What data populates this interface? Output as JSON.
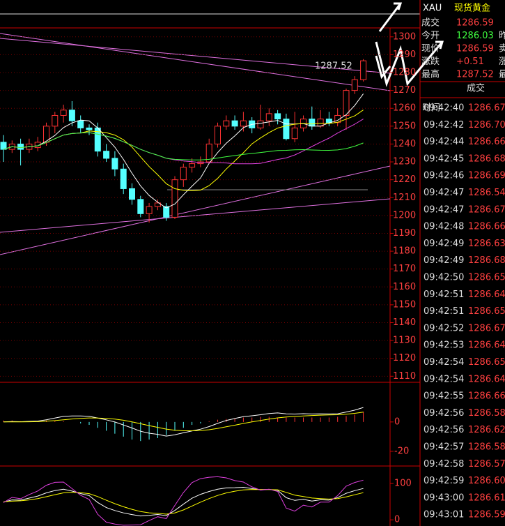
{
  "header": {
    "symbol": "XAU",
    "name": "现货黄金"
  },
  "quote": {
    "rows": [
      {
        "label": "成交",
        "value": "1286.59"
      },
      {
        "label": "今开",
        "value": "1286.03",
        "side": "昨"
      },
      {
        "label": "现价",
        "value": "1286.59",
        "side": "卖"
      },
      {
        "label": "涨跌",
        "value": "+0.51",
        "side": "涨"
      },
      {
        "label": "最高",
        "value": "1287.52",
        "side": "最"
      }
    ]
  },
  "trades": {
    "headers": [
      "时间",
      "成交"
    ],
    "rows": [
      [
        "09:42:40",
        "1286.67"
      ],
      [
        "09:42:42",
        "1286.70"
      ],
      [
        "09:42:44",
        "1286.66"
      ],
      [
        "09:42:45",
        "1286.68"
      ],
      [
        "09:42:46",
        "1286.69"
      ],
      [
        "09:42:47",
        "1286.54"
      ],
      [
        "09:42:47",
        "1286.67"
      ],
      [
        "09:42:48",
        "1286.66"
      ],
      [
        "09:42:49",
        "1286.63"
      ],
      [
        "09:42:49",
        "1286.68"
      ],
      [
        "09:42:50",
        "1286.65"
      ],
      [
        "09:42:51",
        "1286.64"
      ],
      [
        "09:42:51",
        "1286.65"
      ],
      [
        "09:42:52",
        "1286.67"
      ],
      [
        "09:42:53",
        "1286.64"
      ],
      [
        "09:42:54",
        "1286.65"
      ],
      [
        "09:42:54",
        "1286.64"
      ],
      [
        "09:42:55",
        "1286.66"
      ],
      [
        "09:42:56",
        "1286.58"
      ],
      [
        "09:42:56",
        "1286.62"
      ],
      [
        "09:42:57",
        "1286.58"
      ],
      [
        "09:42:58",
        "1286.57"
      ],
      [
        "09:42:59",
        "1286.60"
      ],
      [
        "09:43:00",
        "1286.61"
      ],
      [
        "09:43:01",
        "1286.59"
      ]
    ]
  },
  "chart_data": {
    "type": "candlestick",
    "annotation": "1287.52",
    "ylim": [
      1107,
      1305
    ],
    "yticks": [
      1300,
      1290,
      1280,
      1270,
      1260,
      1250,
      1240,
      1230,
      1220,
      1210,
      1200,
      1190,
      1180,
      1170,
      1160,
      1150,
      1140,
      1130,
      1120,
      1110
    ],
    "candles": [
      [
        1241,
        1237,
        1245,
        1230
      ],
      [
        1237,
        1240,
        1242,
        1235
      ],
      [
        1240,
        1237,
        1243,
        1228
      ],
      [
        1237,
        1240,
        1243,
        1235
      ],
      [
        1238,
        1241,
        1244,
        1236
      ],
      [
        1241,
        1250,
        1252,
        1239
      ],
      [
        1250,
        1256,
        1258,
        1246
      ],
      [
        1256,
        1259,
        1262,
        1252
      ],
      [
        1259,
        1253,
        1264,
        1250
      ],
      [
        1253,
        1249,
        1256,
        1246
      ],
      [
        1249,
        1248,
        1251,
        1245
      ],
      [
        1249,
        1236,
        1252,
        1233
      ],
      [
        1236,
        1232,
        1240,
        1230
      ],
      [
        1232,
        1226,
        1236,
        1222
      ],
      [
        1226,
        1215,
        1229,
        1212
      ],
      [
        1215,
        1209,
        1218,
        1206
      ],
      [
        1209,
        1201,
        1211,
        1199
      ],
      [
        1201,
        1205,
        1207,
        1196
      ],
      [
        1205,
        1207,
        1209,
        1203
      ],
      [
        1205,
        1199,
        1207,
        1197
      ],
      [
        1199,
        1220,
        1222,
        1198
      ],
      [
        1220,
        1227,
        1229,
        1216
      ],
      [
        1227,
        1229,
        1232,
        1224
      ],
      [
        1229,
        1230,
        1233,
        1227
      ],
      [
        1230,
        1240,
        1243,
        1229
      ],
      [
        1240,
        1250,
        1252,
        1238
      ],
      [
        1250,
        1253,
        1256,
        1248
      ],
      [
        1253,
        1250,
        1256,
        1248
      ],
      [
        1250,
        1253,
        1258,
        1247
      ],
      [
        1253,
        1249,
        1255,
        1246
      ],
      [
        1249,
        1253,
        1262,
        1248
      ],
      [
        1253,
        1257,
        1260,
        1250
      ],
      [
        1257,
        1254,
        1259,
        1251
      ],
      [
        1254,
        1243,
        1257,
        1242
      ],
      [
        1243,
        1249,
        1258,
        1241
      ],
      [
        1249,
        1254,
        1256,
        1247
      ],
      [
        1254,
        1250,
        1261,
        1248
      ],
      [
        1250,
        1254,
        1259,
        1249
      ],
      [
        1254,
        1252,
        1258,
        1250
      ],
      [
        1252,
        1256,
        1260,
        1250
      ],
      [
        1256,
        1270,
        1271,
        1248
      ],
      [
        1270,
        1276,
        1278,
        1268
      ],
      [
        1276,
        1286.59,
        1287.52,
        1275
      ]
    ],
    "macd": {
      "ylim": [
        -30,
        27
      ],
      "yticks": [
        0,
        -20
      ],
      "hist": [
        1,
        1,
        0.5,
        0.5,
        0.5,
        1,
        1,
        0.5,
        0,
        -1,
        -2,
        -4,
        -6,
        -8,
        -10,
        -12,
        -13,
        -12,
        -11,
        -9,
        -6,
        -4,
        -2,
        -1,
        0.5,
        1.5,
        2,
        2.5,
        3,
        3,
        3.5,
        3.5,
        3,
        3,
        3,
        3,
        3,
        3,
        3,
        3.5,
        4,
        5,
        7
      ]
    },
    "kdj": {
      "ylim": [
        -17,
        148
      ],
      "yticks": [
        100,
        0
      ]
    }
  }
}
